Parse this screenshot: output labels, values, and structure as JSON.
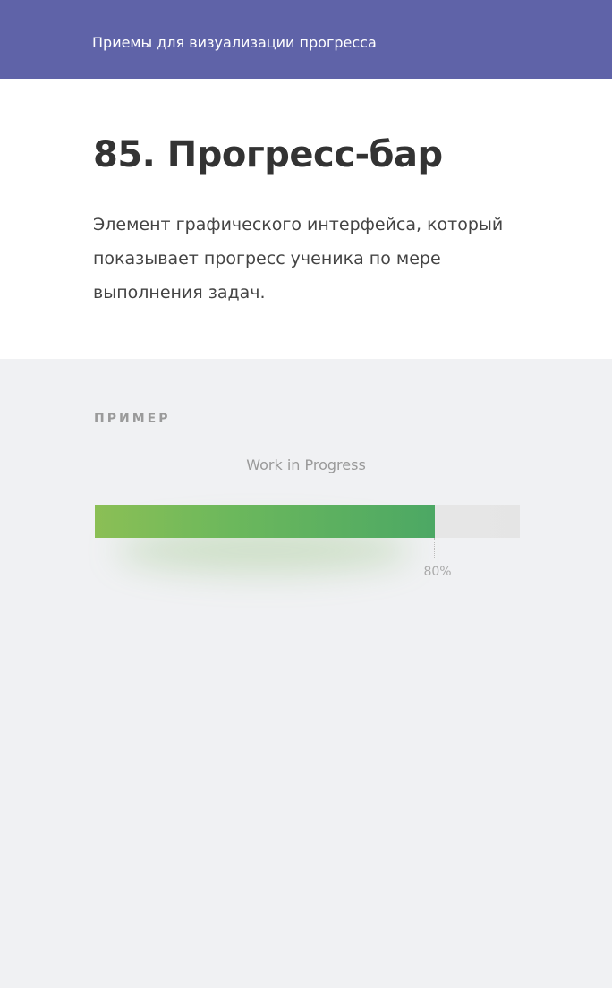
{
  "header": {
    "title": "Приемы для визуализации прогресса",
    "color": "#5f63a8"
  },
  "intro": {
    "title": "85. Прогресс-бар",
    "description": "Элемент графического интерфейса, который показывает прогресс ученика по мере выполнения задач."
  },
  "example": {
    "section_label": "ПРИМЕР",
    "progress": {
      "title": "Work in Progress",
      "value_percent": 80,
      "label": "80%",
      "fill_colors": [
        "#8bbf55",
        "#4ca864"
      ],
      "track_color": "#e8e8e8"
    }
  }
}
